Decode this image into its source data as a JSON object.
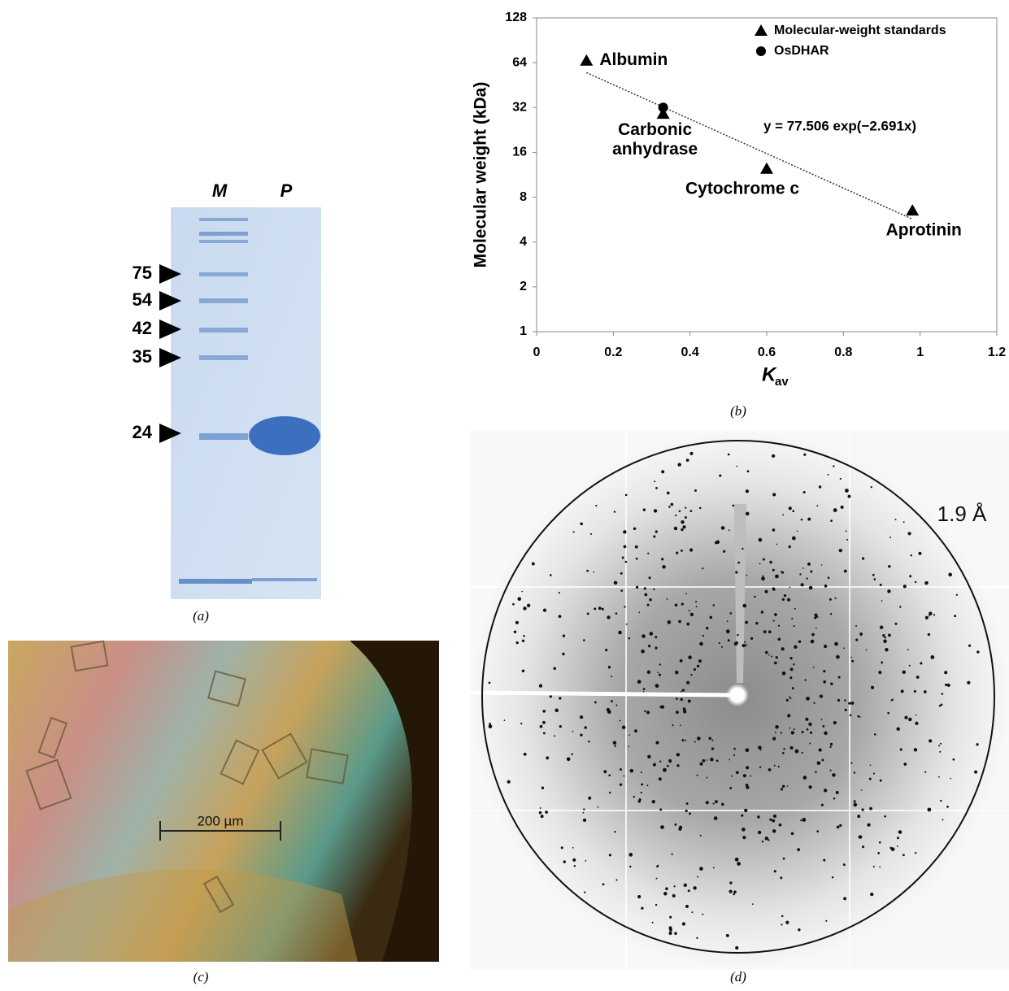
{
  "panel_a": {
    "lanes": [
      "M",
      "P"
    ],
    "markers": [
      "75",
      "54",
      "42",
      "35",
      "24"
    ],
    "caption": "(a)"
  },
  "chart_data": {
    "type": "scatter",
    "y_label": "Molecular weight (kDa)",
    "x_label": "K",
    "x_label_sub": "av",
    "xlim": [
      0,
      1.2
    ],
    "xticks": [
      0,
      0.2,
      0.4,
      0.6,
      0.8,
      1,
      1.2
    ],
    "ylim": [
      1,
      128
    ],
    "yticks": [
      1,
      2,
      4,
      8,
      16,
      32,
      64,
      128
    ],
    "log_y": true,
    "series": [
      {
        "name": "Molecular-weight standards",
        "color": "#000000",
        "marker": "triangle",
        "x": [
          0.13,
          0.33,
          0.6,
          0.98
        ],
        "values": [
          66,
          29,
          12.4,
          6.5
        ],
        "point_labels": [
          "Albumin",
          "Carbonic anhydrase",
          "Cytochrome c",
          "Aprotinin"
        ]
      },
      {
        "name": "OsDHAR",
        "color": "#000000",
        "marker": "circle",
        "x": [
          0.33
        ],
        "values": [
          32
        ]
      }
    ],
    "trendline": {
      "x": [
        0.13,
        0.98
      ],
      "values": [
        54.9,
        5.7
      ],
      "equation": "y = 77.506 exp(−2.691x)"
    },
    "legend": "top-right",
    "caption": "(b)"
  },
  "panel_c": {
    "scale_bar": "200 µm",
    "caption": "(c)"
  },
  "panel_d": {
    "resolution": "1.9 Å",
    "caption": "(d)"
  }
}
